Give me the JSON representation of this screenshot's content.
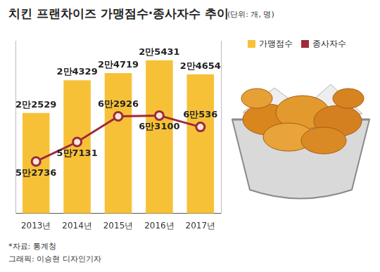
{
  "chart_data": {
    "type": "bar",
    "title": "치킨 프랜차이즈 가맹점수·종사자수 추이",
    "subtitle": "(단위: 개, 명)",
    "annotations": [
      "*자료: 통계청",
      "그래픽: 이승현 디자인기자"
    ],
    "categories": [
      "2013년",
      "2014년",
      "2015년",
      "2016년",
      "2017년"
    ],
    "series": [
      {
        "name": "가맹점수",
        "type": "bar",
        "color": "#f7c137",
        "values": [
          22529,
          24329,
          24719,
          25431,
          24654
        ],
        "value_labels": [
          "2만2529",
          "2만4329",
          "2만4719",
          "2만5431",
          "2만4654"
        ]
      },
      {
        "name": "종사자수",
        "type": "line",
        "axis": "y2",
        "color": "#9e2a3a",
        "marker": "circle",
        "values": [
          52736,
          57131,
          62926,
          63100,
          60536
        ],
        "value_labels": [
          "5만2736",
          "5만7131",
          "6만2926",
          "6만3100",
          "6만536"
        ]
      }
    ],
    "ylim": [
      17000,
      26500
    ],
    "y2lim": [
      41000,
      80000
    ],
    "grid": false,
    "legend": "upper right",
    "data_labels": true,
    "tick_labels": "x"
  }
}
